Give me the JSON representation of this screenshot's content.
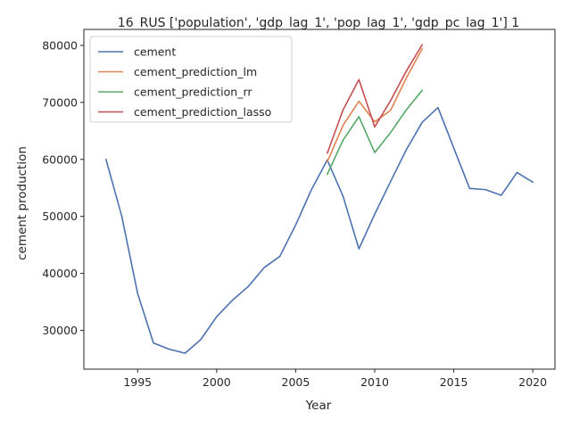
{
  "chart_data": {
    "type": "line",
    "title": "16_RUS ['population', 'gdp_lag_1', 'pop_lag_1', 'gdp_pc_lag_1'] 1",
    "xlabel": "Year",
    "ylabel": "cement production",
    "xlim": [
      1991.6,
      2021.4
    ],
    "ylim": [
      23200,
      82800
    ],
    "xticks": [
      1995,
      2000,
      2005,
      2010,
      2015,
      2020
    ],
    "yticks": [
      30000,
      40000,
      50000,
      60000,
      70000,
      80000
    ],
    "legend_position": "upper-left",
    "grid": false,
    "series": [
      {
        "name": "cement",
        "color": "#4c72b0",
        "x": [
          1993,
          1994,
          1995,
          1996,
          1997,
          1998,
          1999,
          2000,
          2001,
          2002,
          2003,
          2004,
          2005,
          2006,
          2007,
          2008,
          2009,
          2010,
          2011,
          2012,
          2013,
          2014,
          2015,
          2016,
          2017,
          2018,
          2019,
          2020
        ],
        "y": [
          60000,
          50000,
          36500,
          27800,
          26700,
          26000,
          28400,
          32400,
          35300,
          37700,
          41000,
          43000,
          48500,
          54700,
          59900,
          53500,
          44300,
          50400,
          56100,
          61700,
          66500,
          69100,
          62000,
          54900,
          54700,
          53700,
          57700,
          56000
        ]
      },
      {
        "name": "cement_prediction_lm",
        "color": "#dd8452",
        "x": [
          2007,
          2008,
          2009,
          2010,
          2011,
          2012,
          2013
        ],
        "y": [
          59600,
          66000,
          70200,
          66600,
          68600,
          74300,
          79400
        ]
      },
      {
        "name": "cement_prediction_rr",
        "color": "#55a868",
        "x": [
          2007,
          2008,
          2009,
          2010,
          2011,
          2012,
          2013
        ],
        "y": [
          57400,
          63400,
          67500,
          61200,
          64700,
          68700,
          72100
        ]
      },
      {
        "name": "cement_prediction_lasso",
        "color": "#c44e52",
        "x": [
          2007,
          2008,
          2009,
          2010,
          2011,
          2012,
          2013
        ],
        "y": [
          61100,
          68700,
          74000,
          65700,
          70300,
          75500,
          80100
        ]
      }
    ]
  }
}
